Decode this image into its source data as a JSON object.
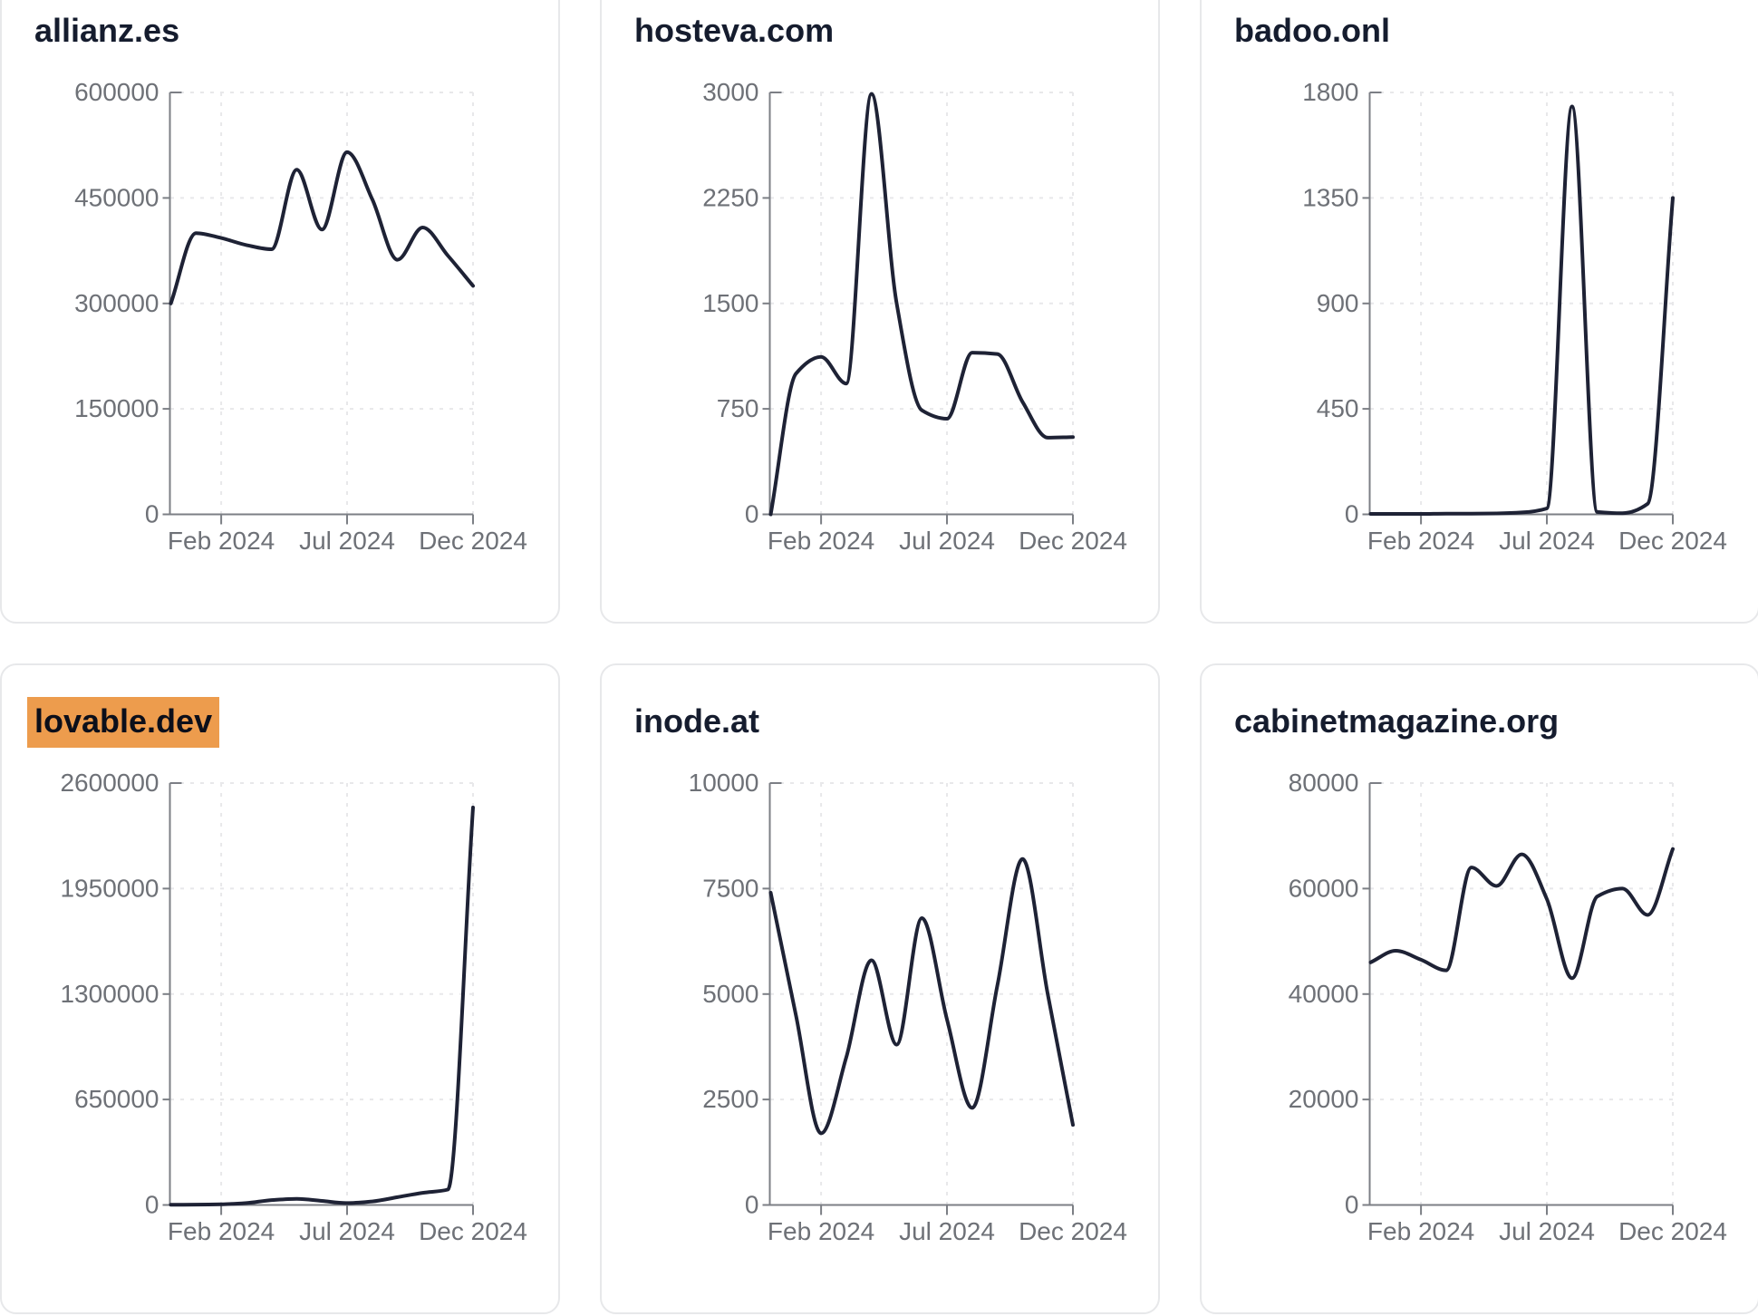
{
  "styles": {
    "page_bg": "#ffffff",
    "card_bg": "#ffffff",
    "card_border": "#e7e8ea",
    "title_color": "#151c2e",
    "line_color": "#1e2235",
    "grid_color": "#e8e8ea",
    "axis_color": "#7c7f85",
    "tick_label_color": "#6e7177",
    "highlight_color": "#ed9c4d"
  },
  "chart_data": [
    {
      "type": "line",
      "title": "allianz.es",
      "highlighted": false,
      "x": [
        "Dec 2023",
        "Jan 2024",
        "Feb 2024",
        "Mar 2024",
        "Apr 2024",
        "May 2024",
        "Jun 2024",
        "Jul 2024",
        "Aug 2024",
        "Sep 2024",
        "Oct 2024",
        "Nov 2024",
        "Dec 2024"
      ],
      "values": [
        300000,
        400000,
        393000,
        383000,
        377000,
        490000,
        405000,
        515000,
        448000,
        362000,
        408000,
        368000,
        325000
      ],
      "ylim": [
        0,
        600000
      ],
      "y_ticks": [
        0,
        150000,
        300000,
        450000,
        600000
      ],
      "x_tick_labels": [
        "Feb 2024",
        "Jul 2024",
        "Dec 2024"
      ],
      "x_tick_indices": [
        2,
        7,
        12
      ],
      "grid": "dashed",
      "legend": "none"
    },
    {
      "type": "line",
      "title": "hosteva.com",
      "highlighted": false,
      "x": [
        "Dec 2023",
        "Jan 2024",
        "Feb 2024",
        "Mar 2024",
        "Apr 2024",
        "May 2024",
        "Jun 2024",
        "Jul 2024",
        "Aug 2024",
        "Sep 2024",
        "Oct 2024",
        "Nov 2024",
        "Dec 2024"
      ],
      "values": [
        0,
        1000,
        1120,
        930,
        2990,
        1500,
        740,
        680,
        1150,
        1140,
        800,
        545,
        550
      ],
      "ylim": [
        0,
        3000
      ],
      "y_ticks": [
        0,
        750,
        1500,
        2250,
        3000
      ],
      "x_tick_labels": [
        "Feb 2024",
        "Jul 2024",
        "Dec 2024"
      ],
      "x_tick_indices": [
        2,
        7,
        12
      ],
      "grid": "dashed",
      "legend": "none"
    },
    {
      "type": "line",
      "title": "badoo.onl",
      "highlighted": false,
      "x": [
        "Dec 2023",
        "Jan 2024",
        "Feb 2024",
        "Mar 2024",
        "Apr 2024",
        "May 2024",
        "Jun 2024",
        "Jul 2024",
        "Aug 2024",
        "Sep 2024",
        "Oct 2024",
        "Nov 2024",
        "Dec 2024"
      ],
      "values": [
        2,
        2,
        2,
        3,
        3,
        4,
        8,
        25,
        1740,
        10,
        5,
        45,
        1350
      ],
      "ylim": [
        0,
        1800
      ],
      "y_ticks": [
        0,
        450,
        900,
        1350,
        1800
      ],
      "x_tick_labels": [
        "Feb 2024",
        "Jul 2024",
        "Dec 2024"
      ],
      "x_tick_indices": [
        2,
        7,
        12
      ],
      "grid": "dashed",
      "legend": "none"
    },
    {
      "type": "line",
      "title": "lovable.dev",
      "highlighted": true,
      "x": [
        "Dec 2023",
        "Jan 2024",
        "Feb 2024",
        "Mar 2024",
        "Apr 2024",
        "May 2024",
        "Jun 2024",
        "Jul 2024",
        "Aug 2024",
        "Sep 2024",
        "Oct 2024",
        "Nov 2024",
        "Dec 2024"
      ],
      "values": [
        1000,
        2000,
        4000,
        12000,
        30000,
        38000,
        25000,
        12000,
        22000,
        48000,
        75000,
        95000,
        2450000
      ],
      "ylim": [
        0,
        2600000
      ],
      "y_ticks": [
        0,
        650000,
        1300000,
        1950000,
        2600000
      ],
      "x_tick_labels": [
        "Feb 2024",
        "Jul 2024",
        "Dec 2024"
      ],
      "x_tick_indices": [
        2,
        7,
        12
      ],
      "grid": "dashed",
      "legend": "none"
    },
    {
      "type": "line",
      "title": "inode.at",
      "highlighted": false,
      "x": [
        "Dec 2023",
        "Jan 2024",
        "Feb 2024",
        "Mar 2024",
        "Apr 2024",
        "May 2024",
        "Jun 2024",
        "Jul 2024",
        "Aug 2024",
        "Sep 2024",
        "Oct 2024",
        "Nov 2024",
        "Dec 2024"
      ],
      "values": [
        7400,
        4500,
        1700,
        3500,
        5800,
        3800,
        6800,
        4400,
        2300,
        5200,
        8200,
        5000,
        1900
      ],
      "ylim": [
        0,
        10000
      ],
      "y_ticks": [
        0,
        2500,
        5000,
        7500,
        10000
      ],
      "x_tick_labels": [
        "Feb 2024",
        "Jul 2024",
        "Dec 2024"
      ],
      "x_tick_indices": [
        2,
        7,
        12
      ],
      "grid": "dashed",
      "legend": "none"
    },
    {
      "type": "line",
      "title": "cabinetmagazine.org",
      "highlighted": false,
      "x": [
        "Dec 2023",
        "Jan 2024",
        "Feb 2024",
        "Mar 2024",
        "Apr 2024",
        "May 2024",
        "Jun 2024",
        "Jul 2024",
        "Aug 2024",
        "Sep 2024",
        "Oct 2024",
        "Nov 2024",
        "Dec 2024"
      ],
      "values": [
        46000,
        48200,
        46500,
        44500,
        64000,
        60500,
        66500,
        58000,
        43000,
        58500,
        60000,
        55000,
        67500
      ],
      "ylim": [
        0,
        80000
      ],
      "y_ticks": [
        0,
        20000,
        40000,
        60000,
        80000
      ],
      "x_tick_labels": [
        "Feb 2024",
        "Jul 2024",
        "Dec 2024"
      ],
      "x_tick_indices": [
        2,
        7,
        12
      ],
      "grid": "dashed",
      "legend": "none"
    }
  ]
}
